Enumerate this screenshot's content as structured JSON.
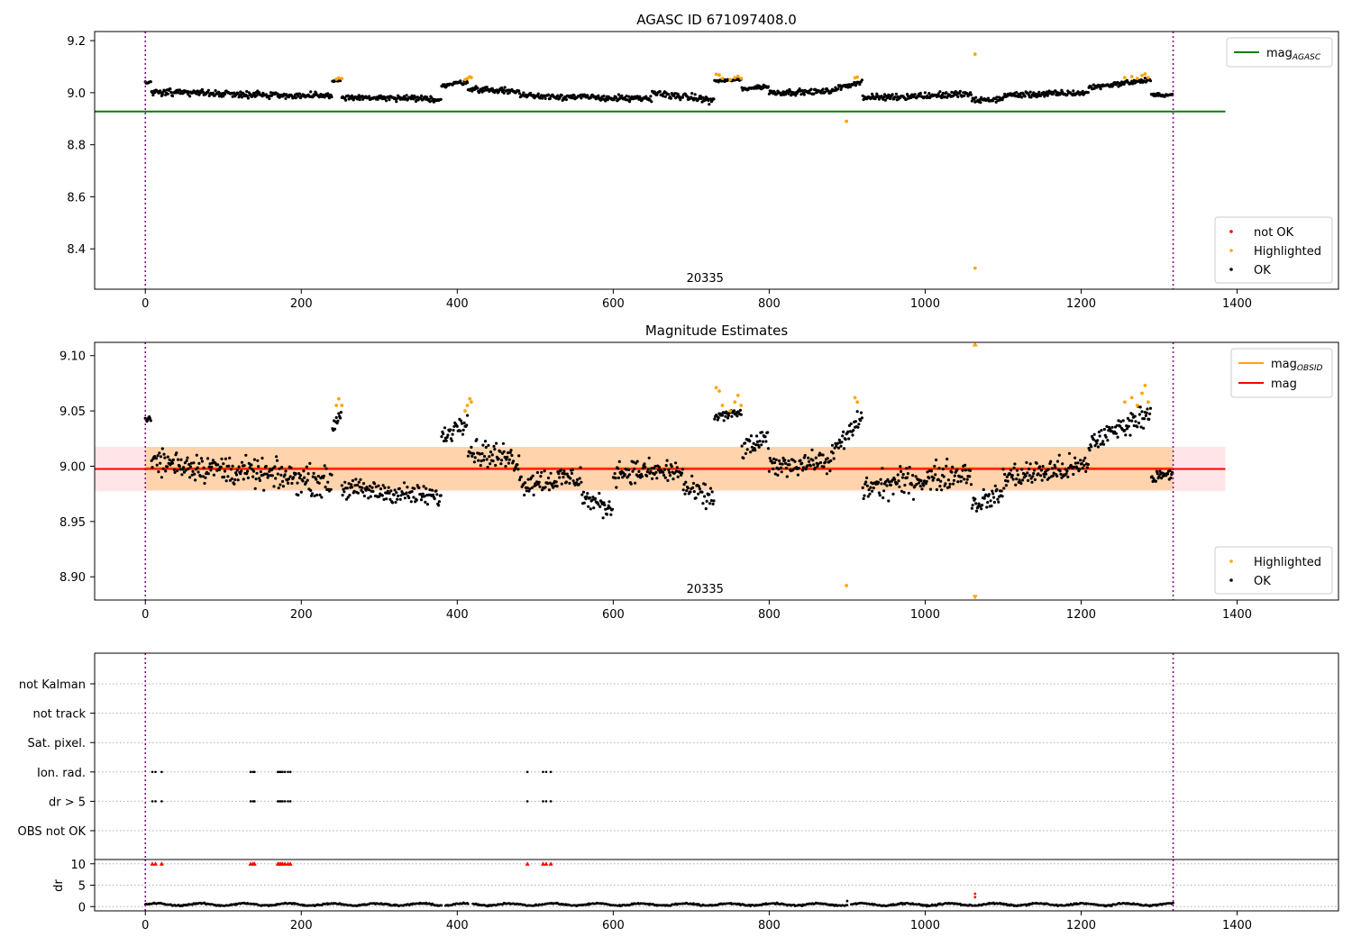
{
  "figure": {
    "top_title": "AGASC ID 671097408.0",
    "mid_title": "Magnitude Estimates",
    "obsid_label": "20335"
  },
  "chart_data": [
    {
      "type": "scatter",
      "title": "AGASC ID 671097408.0",
      "xlim": [
        -65,
        1530
      ],
      "ylim": [
        8.245,
        9.235
      ],
      "x_ticks": [
        0,
        200,
        400,
        600,
        800,
        1000,
        1200,
        1400
      ],
      "y_ticks": [
        8.4,
        8.6,
        8.8,
        9.0,
        9.2
      ],
      "y_tick_labels": [
        "8.4",
        "8.6",
        "8.8",
        "9.0",
        "9.2"
      ],
      "obs_boundaries": [
        0,
        1318
      ],
      "annotation": {
        "text": "20335",
        "x": 660,
        "y": 8.255
      },
      "hlines": [
        {
          "name": "mag_AGASC",
          "y": 8.928,
          "x": [
            -65,
            1385
          ],
          "color": "#008000"
        }
      ],
      "legend_lines": [
        {
          "name": "mag",
          "sub": "AGASC",
          "color": "#008000"
        }
      ],
      "legend_points": [
        {
          "name": "not OK",
          "color": "#ff0000"
        },
        {
          "name": "Highlighted",
          "color": "#ffa500"
        },
        {
          "name": "OK",
          "color": "#000000"
        }
      ],
      "segments": [
        {
          "x": [
            0,
            8
          ],
          "start": 9.04,
          "end": 9.038,
          "noise": 0.004
        },
        {
          "x": [
            8,
            240
          ],
          "start": 9.005,
          "end": 8.985,
          "noise": 0.011
        },
        {
          "x": [
            240,
            252
          ],
          "start": 9.045,
          "end": 9.05,
          "noise": 0.004
        },
        {
          "x": [
            252,
            380
          ],
          "start": 8.982,
          "end": 8.975,
          "noise": 0.009
        },
        {
          "x": [
            380,
            414
          ],
          "start": 9.025,
          "end": 9.045,
          "noise": 0.008
        },
        {
          "x": [
            414,
            480
          ],
          "start": 9.015,
          "end": 9.005,
          "noise": 0.009
        },
        {
          "x": [
            480,
            650
          ],
          "start": 8.99,
          "end": 8.975,
          "noise": 0.01
        },
        {
          "x": [
            650,
            730
          ],
          "start": 9.0,
          "end": 8.97,
          "noise": 0.011
        },
        {
          "x": [
            730,
            765
          ],
          "start": 9.045,
          "end": 9.05,
          "noise": 0.004
        },
        {
          "x": [
            765,
            800
          ],
          "start": 9.015,
          "end": 9.025,
          "noise": 0.008
        },
        {
          "x": [
            800,
            880
          ],
          "start": 9.0,
          "end": 9.005,
          "noise": 0.009
        },
        {
          "x": [
            880,
            920
          ],
          "start": 9.01,
          "end": 9.045,
          "noise": 0.008
        },
        {
          "x": [
            920,
            1060
          ],
          "start": 8.98,
          "end": 8.995,
          "noise": 0.011
        },
        {
          "x": [
            1060,
            1100
          ],
          "start": 8.97,
          "end": 8.975,
          "noise": 0.009
        },
        {
          "x": [
            1100,
            1210
          ],
          "start": 8.99,
          "end": 9.0,
          "noise": 0.01
        },
        {
          "x": [
            1210,
            1290
          ],
          "start": 9.02,
          "end": 9.05,
          "noise": 0.008
        },
        {
          "x": [
            1290,
            1318
          ],
          "start": 8.99,
          "end": 8.992,
          "noise": 0.005
        }
      ],
      "highlighted": [
        [
          245,
          9.052
        ],
        [
          248,
          9.056
        ],
        [
          252,
          9.054
        ],
        [
          410,
          9.05
        ],
        [
          413,
          9.055
        ],
        [
          416,
          9.061
        ],
        [
          418,
          9.058
        ],
        [
          732,
          9.071
        ],
        [
          736,
          9.068
        ],
        [
          740,
          9.055
        ],
        [
          750,
          9.05
        ],
        [
          756,
          9.058
        ],
        [
          760,
          9.063
        ],
        [
          764,
          9.055
        ],
        [
          899,
          8.89
        ],
        [
          910,
          9.057
        ],
        [
          913,
          9.06
        ],
        [
          1064,
          9.148
        ],
        [
          1064,
          8.326
        ],
        [
          1256,
          9.058
        ],
        [
          1265,
          9.062
        ],
        [
          1272,
          9.055
        ],
        [
          1278,
          9.066
        ],
        [
          1282,
          9.072
        ],
        [
          1286,
          9.058
        ]
      ]
    },
    {
      "type": "scatter",
      "title": "Magnitude Estimates",
      "xlim": [
        -65,
        1530
      ],
      "ylim": [
        8.879,
        9.112
      ],
      "x_ticks": [
        0,
        200,
        400,
        600,
        800,
        1000,
        1200,
        1400
      ],
      "y_ticks": [
        8.9,
        8.95,
        9.0,
        9.05,
        9.1
      ],
      "y_tick_labels": [
        "8.90",
        "8.95",
        "9.00",
        "9.05",
        "9.10"
      ],
      "obs_boundaries": [
        0,
        1318
      ],
      "annotation": {
        "text": "20335",
        "x": 660,
        "y": 8.8815
      },
      "bands": [
        {
          "x": [
            -65,
            1385
          ],
          "y": [
            8.9775,
            9.0175
          ],
          "color": "rgba(255,150,160,0.25)"
        },
        {
          "x": [
            0,
            1318
          ],
          "y": [
            8.9785,
            9.0175
          ],
          "color": "rgba(255,165,0,0.25)"
        }
      ],
      "hlines": [
        {
          "name": "mag_OBSID",
          "y": 8.9985,
          "x": [
            0,
            1318
          ],
          "color": "#ffa500"
        },
        {
          "name": "mag",
          "y": 8.9975,
          "x": [
            -65,
            1385
          ],
          "color": "#ff0000"
        }
      ],
      "legend_lines": [
        {
          "name": "mag",
          "sub": "OBSID",
          "color": "#ffa500"
        },
        {
          "name": "mag",
          "sub": "",
          "color": "#ff0000"
        }
      ],
      "legend_points": [
        {
          "name": "Highlighted",
          "color": "#ffa500"
        },
        {
          "name": "OK",
          "color": "#000000"
        }
      ],
      "segments": [
        {
          "x": [
            0,
            8
          ],
          "start": 9.045,
          "end": 9.04,
          "noise": 0.003
        },
        {
          "x": [
            8,
            240
          ],
          "start": 9.005,
          "end": 8.985,
          "noise": 0.011
        },
        {
          "x": [
            240,
            252
          ],
          "start": 9.035,
          "end": 9.05,
          "noise": 0.005
        },
        {
          "x": [
            252,
            380
          ],
          "start": 8.98,
          "end": 8.972,
          "noise": 0.008
        },
        {
          "x": [
            380,
            414
          ],
          "start": 9.025,
          "end": 9.045,
          "noise": 0.008
        },
        {
          "x": [
            414,
            480
          ],
          "start": 9.015,
          "end": 9.005,
          "noise": 0.01
        },
        {
          "x": [
            480,
            560
          ],
          "start": 8.985,
          "end": 8.99,
          "noise": 0.01
        },
        {
          "x": [
            560,
            600
          ],
          "start": 8.972,
          "end": 8.96,
          "noise": 0.008
        },
        {
          "x": [
            600,
            690
          ],
          "start": 8.995,
          "end": 8.995,
          "noise": 0.009
        },
        {
          "x": [
            690,
            730
          ],
          "start": 8.98,
          "end": 8.97,
          "noise": 0.009
        },
        {
          "x": [
            730,
            765
          ],
          "start": 9.045,
          "end": 9.048,
          "noise": 0.004
        },
        {
          "x": [
            765,
            800
          ],
          "start": 9.015,
          "end": 9.025,
          "noise": 0.008
        },
        {
          "x": [
            800,
            880
          ],
          "start": 9.0,
          "end": 9.005,
          "noise": 0.008
        },
        {
          "x": [
            880,
            920
          ],
          "start": 9.01,
          "end": 9.045,
          "noise": 0.008
        },
        {
          "x": [
            920,
            1060
          ],
          "start": 8.98,
          "end": 8.995,
          "noise": 0.011
        },
        {
          "x": [
            1060,
            1100
          ],
          "start": 8.965,
          "end": 8.975,
          "noise": 0.008
        },
        {
          "x": [
            1100,
            1210
          ],
          "start": 8.99,
          "end": 9.0,
          "noise": 0.01
        },
        {
          "x": [
            1210,
            1290
          ],
          "start": 9.02,
          "end": 9.05,
          "noise": 0.008
        },
        {
          "x": [
            1290,
            1318
          ],
          "start": 8.99,
          "end": 8.992,
          "noise": 0.005
        }
      ],
      "highlighted": [
        [
          245,
          9.055
        ],
        [
          248,
          9.061
        ],
        [
          252,
          9.055
        ],
        [
          410,
          9.05
        ],
        [
          413,
          9.055
        ],
        [
          416,
          9.061
        ],
        [
          418,
          9.058
        ],
        [
          732,
          9.071
        ],
        [
          736,
          9.068
        ],
        [
          740,
          9.055
        ],
        [
          750,
          9.05
        ],
        [
          756,
          9.058
        ],
        [
          760,
          9.064
        ],
        [
          764,
          9.055
        ],
        [
          899,
          8.892
        ],
        [
          910,
          9.062
        ],
        [
          913,
          9.058
        ],
        [
          1256,
          9.058
        ],
        [
          1265,
          9.062
        ],
        [
          1272,
          9.055
        ],
        [
          1278,
          9.066
        ],
        [
          1282,
          9.073
        ],
        [
          1286,
          9.058
        ]
      ],
      "clipped_markers": [
        [
          1064,
          9.11,
          "up"
        ],
        [
          1064,
          8.882,
          "down"
        ]
      ]
    },
    {
      "type": "scatter",
      "title": "",
      "xlim": [
        -65,
        1530
      ],
      "x_ticks": [
        0,
        200,
        400,
        600,
        800,
        1000,
        1200,
        1400
      ],
      "obs_boundaries": [
        0,
        1318
      ],
      "flag_rows": [
        "not Kalman",
        "not track",
        "Sat. pixel.",
        "Ion. rad.",
        "dr > 5",
        "OBS not OK"
      ],
      "flagged_x": [
        9,
        13,
        21,
        135,
        138,
        140,
        170,
        172,
        174,
        176,
        179,
        183,
        186,
        490,
        510,
        514,
        520
      ],
      "flagged_in_rows": [
        "Ion. rad.",
        "dr > 5"
      ],
      "dr": {
        "ylabel": "dr",
        "ylim": [
          -1,
          11
        ],
        "y_ticks": [
          0,
          5,
          10
        ],
        "y_tick_labels": [
          "0",
          "5",
          "10"
        ],
        "typical": 0.5,
        "clipped_value": 10,
        "outliers": [
          [
            1064,
            3.0
          ],
          [
            1064,
            2.2
          ],
          [
            900,
            1.3
          ]
        ]
      }
    }
  ],
  "colors": {
    "ok": "#000000",
    "highlighted": "#ffa500",
    "not_ok": "#ff0000",
    "obs_boundary": "#800080",
    "grid": "#b0b0b0"
  }
}
